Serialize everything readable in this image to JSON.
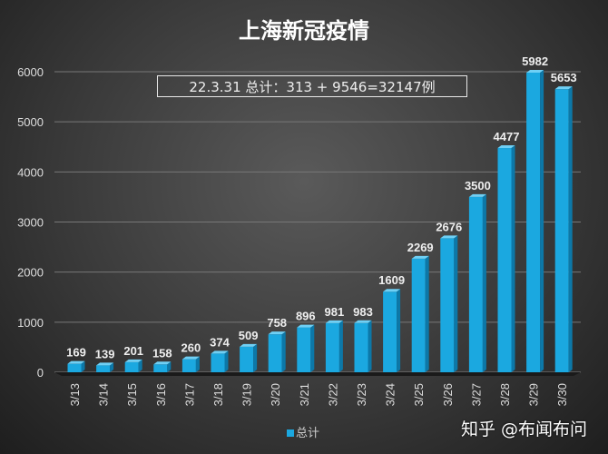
{
  "chart_data": {
    "type": "bar",
    "title": "上海新冠疫情",
    "annotation": "22.3.31 总计：313 + 9546=32147例",
    "categories": [
      "3/13",
      "3/14",
      "3/15",
      "3/16",
      "3/17",
      "3/18",
      "3/19",
      "3/20",
      "3/21",
      "3/22",
      "3/23",
      "3/24",
      "3/25",
      "3/26",
      "3/27",
      "3/28",
      "3/29",
      "3/30"
    ],
    "series": [
      {
        "name": "总计",
        "values": [
          169,
          139,
          201,
          158,
          260,
          374,
          509,
          758,
          896,
          981,
          983,
          1609,
          2269,
          2676,
          3500,
          4477,
          5982,
          5653
        ],
        "color": "#1ba8e0"
      }
    ],
    "yticks": [
      0,
      1000,
      2000,
      3000,
      4000,
      5000,
      6000
    ],
    "ylim": [
      0,
      6000
    ],
    "grid": true,
    "legend": "bottom",
    "data_labels": true
  },
  "watermark": "知乎 @布闻布问"
}
